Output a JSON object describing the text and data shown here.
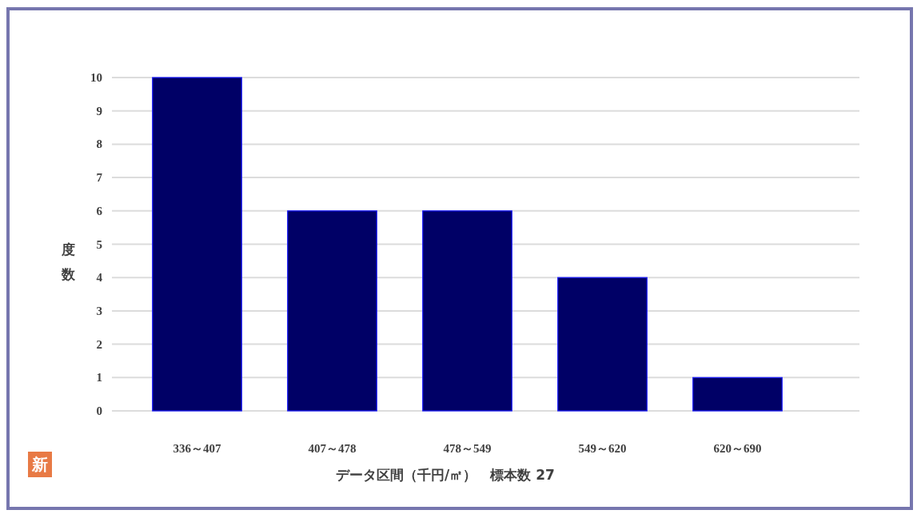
{
  "chart_data": {
    "type": "bar",
    "categories": [
      "336～407",
      "407～478",
      "478～549",
      "549～620",
      "620～690"
    ],
    "values": [
      10,
      6,
      6,
      4,
      1
    ],
    "color": "#000066",
    "xlabel": "データ区間（千円/㎡）　標本数 27",
    "ylabel": "度数",
    "ylim": [
      0,
      10
    ],
    "yticks": [
      0,
      1,
      2,
      3,
      4,
      5,
      6,
      7,
      8,
      9,
      10
    ],
    "grid": "y",
    "annotations": [
      "新"
    ]
  }
}
